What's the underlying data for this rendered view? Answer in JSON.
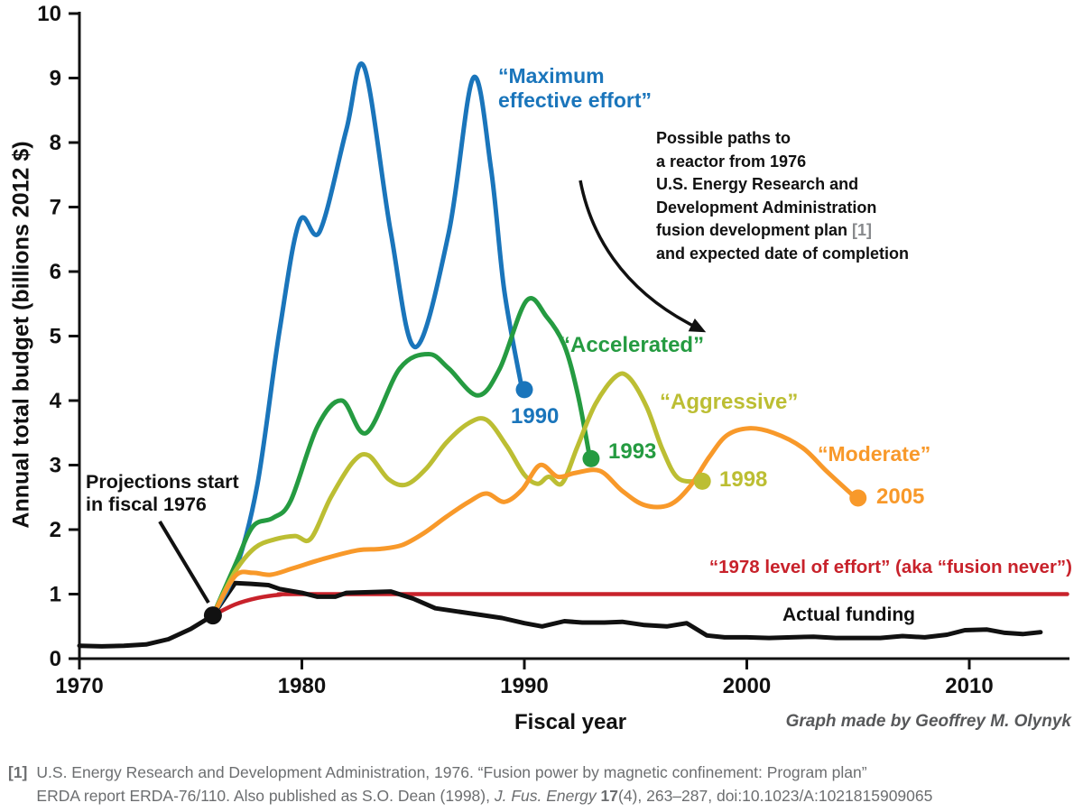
{
  "figure": {
    "credit": "Graph made by Geoffrey M. Olynyk"
  },
  "chart_data": {
    "type": "line",
    "title": "",
    "xlabel": "Fiscal year",
    "ylabel": "Annual total budget (billions 2012 $)",
    "xlim": [
      1970,
      2014.5
    ],
    "ylim": [
      0,
      10
    ],
    "x_ticks": [
      1970,
      1980,
      1990,
      2000,
      2010
    ],
    "y_ticks": [
      0,
      1,
      2,
      3,
      4,
      5,
      6,
      7,
      8,
      9,
      10
    ],
    "grid": false,
    "legend_position": "inline-labels",
    "projection_start": {
      "year": 1976,
      "value": 0.67
    },
    "series": [
      {
        "id": "maximum-effective-effort",
        "label": "“Maximum\neffective effort”",
        "color": "#1a75bb",
        "smooth": true,
        "end": {
          "year": 1990,
          "value": 4.17,
          "label": "1990"
        },
        "points": [
          [
            1976,
            0.67
          ],
          [
            1977,
            1.35
          ],
          [
            1978,
            2.7
          ],
          [
            1979,
            5.1
          ],
          [
            1979.9,
            6.78
          ],
          [
            1980.8,
            6.62
          ],
          [
            1982,
            8.2
          ],
          [
            1982.8,
            9.17
          ],
          [
            1984,
            6.6
          ],
          [
            1985.1,
            4.83
          ],
          [
            1986.6,
            6.6
          ],
          [
            1987.7,
            9.0
          ],
          [
            1988.5,
            7.6
          ],
          [
            1989.1,
            5.7
          ],
          [
            1989.9,
            4.17
          ]
        ]
      },
      {
        "id": "accelerated",
        "label": "“Accelerated”",
        "color": "#259b41",
        "smooth": true,
        "end": {
          "year": 1993,
          "value": 3.1,
          "label": "1993"
        },
        "points": [
          [
            1976,
            0.67
          ],
          [
            1977,
            1.45
          ],
          [
            1977.8,
            2.05
          ],
          [
            1978.7,
            2.18
          ],
          [
            1979.5,
            2.45
          ],
          [
            1980.7,
            3.6
          ],
          [
            1981.8,
            4.0
          ],
          [
            1982.9,
            3.5
          ],
          [
            1984.4,
            4.5
          ],
          [
            1985.7,
            4.72
          ],
          [
            1986.6,
            4.5
          ],
          [
            1987.9,
            4.08
          ],
          [
            1988.9,
            4.5
          ],
          [
            1990.1,
            5.55
          ],
          [
            1991,
            5.3
          ],
          [
            1991.8,
            4.85
          ],
          [
            1992.4,
            4.1
          ],
          [
            1992.95,
            3.1
          ]
        ]
      },
      {
        "id": "aggressive",
        "label": "“Aggressive”",
        "color": "#bcbe33",
        "smooth": true,
        "end": {
          "year": 1998,
          "value": 2.75,
          "label": "1998"
        },
        "points": [
          [
            1976,
            0.67
          ],
          [
            1977,
            1.35
          ],
          [
            1977.9,
            1.72
          ],
          [
            1978.8,
            1.85
          ],
          [
            1979.7,
            1.9
          ],
          [
            1980.4,
            1.86
          ],
          [
            1981.3,
            2.5
          ],
          [
            1982.3,
            3.05
          ],
          [
            1983,
            3.15
          ],
          [
            1983.9,
            2.78
          ],
          [
            1984.7,
            2.7
          ],
          [
            1985.6,
            2.95
          ],
          [
            1986.5,
            3.35
          ],
          [
            1987.5,
            3.65
          ],
          [
            1988.3,
            3.7
          ],
          [
            1989.2,
            3.3
          ],
          [
            1990,
            2.85
          ],
          [
            1990.6,
            2.71
          ],
          [
            1991.1,
            2.82
          ],
          [
            1991.7,
            2.72
          ],
          [
            1992.4,
            3.3
          ],
          [
            1993.2,
            3.95
          ],
          [
            1994.1,
            4.37
          ],
          [
            1994.7,
            4.36
          ],
          [
            1995.5,
            3.9
          ],
          [
            1996.2,
            3.25
          ],
          [
            1996.9,
            2.8
          ],
          [
            1997.85,
            2.75
          ]
        ]
      },
      {
        "id": "moderate",
        "label": "“Moderate”",
        "color": "#f8992a",
        "smooth": true,
        "end": {
          "year": 2005,
          "value": 2.49,
          "label": "2005"
        },
        "points": [
          [
            1976,
            0.67
          ],
          [
            1977,
            1.28
          ],
          [
            1977.8,
            1.33
          ],
          [
            1978.6,
            1.3
          ],
          [
            1979.6,
            1.4
          ],
          [
            1981,
            1.55
          ],
          [
            1982.5,
            1.68
          ],
          [
            1983.5,
            1.7
          ],
          [
            1984.5,
            1.76
          ],
          [
            1985.5,
            1.95
          ],
          [
            1986.5,
            2.2
          ],
          [
            1987.5,
            2.43
          ],
          [
            1988.3,
            2.56
          ],
          [
            1989.1,
            2.43
          ],
          [
            1989.9,
            2.62
          ],
          [
            1990.7,
            3.0
          ],
          [
            1991.5,
            2.82
          ],
          [
            1992.3,
            2.88
          ],
          [
            1993.4,
            2.91
          ],
          [
            1994.4,
            2.6
          ],
          [
            1995.4,
            2.38
          ],
          [
            1996.5,
            2.38
          ],
          [
            1997.4,
            2.65
          ],
          [
            1998.3,
            3.12
          ],
          [
            1999.1,
            3.46
          ],
          [
            2000.1,
            3.57
          ],
          [
            2001.2,
            3.5
          ],
          [
            2002.5,
            3.27
          ],
          [
            2003.6,
            2.9
          ],
          [
            2004.9,
            2.49
          ]
        ]
      },
      {
        "id": "fusion-never",
        "label": "“1978 level of effort” (aka “fusion never”)",
        "color": "#c8222b",
        "smooth": true,
        "points": [
          [
            1976,
            0.67
          ],
          [
            1977,
            0.84
          ],
          [
            1978,
            0.94
          ],
          [
            1979,
            0.99
          ],
          [
            1980,
            1.0
          ],
          [
            1990,
            1.0
          ],
          [
            2005,
            1.0
          ],
          [
            2014.4,
            1.0
          ]
        ]
      },
      {
        "id": "actual-funding",
        "label": "Actual funding",
        "color": "#111111",
        "smooth": false,
        "points": [
          [
            1970,
            0.2
          ],
          [
            1971,
            0.19
          ],
          [
            1972,
            0.2
          ],
          [
            1973,
            0.22
          ],
          [
            1974,
            0.3
          ],
          [
            1975,
            0.46
          ],
          [
            1976,
            0.67
          ],
          [
            1977,
            1.17
          ],
          [
            1977.7,
            1.16
          ],
          [
            1978.5,
            1.14
          ],
          [
            1979,
            1.08
          ],
          [
            1980,
            1.02
          ],
          [
            1980.7,
            0.96
          ],
          [
            1981.5,
            0.96
          ],
          [
            1982,
            1.02
          ],
          [
            1983,
            1.03
          ],
          [
            1984,
            1.04
          ],
          [
            1985,
            0.93
          ],
          [
            1986,
            0.78
          ],
          [
            1987,
            0.73
          ],
          [
            1988,
            0.68
          ],
          [
            1989,
            0.63
          ],
          [
            1990,
            0.55
          ],
          [
            1990.8,
            0.5
          ],
          [
            1991.8,
            0.58
          ],
          [
            1992.6,
            0.56
          ],
          [
            1993.6,
            0.56
          ],
          [
            1994.4,
            0.57
          ],
          [
            1995.4,
            0.52
          ],
          [
            1996.4,
            0.5
          ],
          [
            1997.3,
            0.55
          ],
          [
            1998.2,
            0.36
          ],
          [
            1999,
            0.33
          ],
          [
            2000,
            0.33
          ],
          [
            2001,
            0.32
          ],
          [
            2002,
            0.33
          ],
          [
            2003,
            0.34
          ],
          [
            2004,
            0.32
          ],
          [
            2005,
            0.32
          ],
          [
            2006,
            0.32
          ],
          [
            2007,
            0.35
          ],
          [
            2008,
            0.33
          ],
          [
            2009,
            0.37
          ],
          [
            2009.8,
            0.44
          ],
          [
            2010.8,
            0.45
          ],
          [
            2011.6,
            0.4
          ],
          [
            2012.4,
            0.38
          ],
          [
            2013.2,
            0.41
          ]
        ]
      }
    ]
  },
  "annotations": {
    "projection_start_note": "Projections start\nin fiscal 1976",
    "paths_note": {
      "line1": "Possible paths to",
      "line2": "a reactor from 1976",
      "line3": "U.S. Energy Research and",
      "line4": "Development Administration",
      "line5_main": "fusion development plan ",
      "line5_ref": "[1]",
      "line6": "and expected date of completion"
    }
  },
  "footnote": {
    "ref": "[1]",
    "line1": "U.S. Energy Research and Development Administration, 1976. “Fusion power by magnetic confinement: Program plan”",
    "line2_pre": "ERDA report ERDA-76/110. Also published as S.O. Dean (1998), ",
    "journal": "J. Fus. Energy ",
    "volume": "17",
    "line2_post": "(4), 263–287, doi:10.1023/A:1021815909065"
  }
}
